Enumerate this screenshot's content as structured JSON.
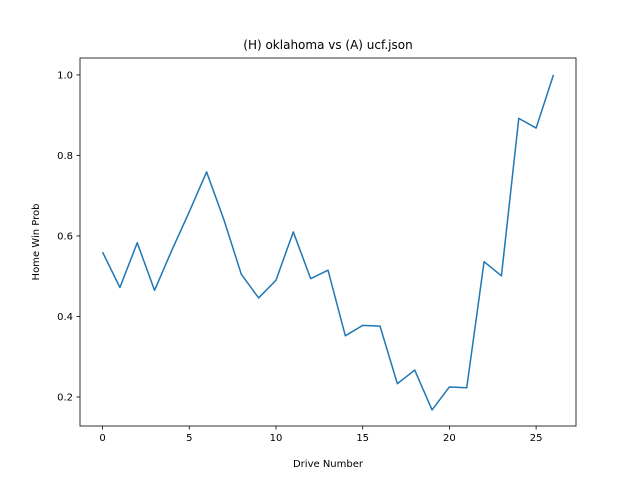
{
  "chart_data": {
    "type": "line",
    "title": "(H) oklahoma vs (A) ucf.json",
    "xlabel": "Drive Number",
    "ylabel": "Home Win Prob",
    "xlim": [
      -1.3,
      27.3
    ],
    "ylim": [
      0.128,
      1.042
    ],
    "xticks": [
      0,
      5,
      10,
      15,
      20,
      25
    ],
    "yticks": [
      0.2,
      0.4,
      0.6,
      0.8,
      1.0
    ],
    "xtick_labels": [
      "0",
      "5",
      "10",
      "15",
      "20",
      "25"
    ],
    "ytick_labels": [
      "0.2",
      "0.4",
      "0.6",
      "0.8",
      "1.0"
    ],
    "grid": false,
    "series": [
      {
        "color": "#1f77b4",
        "x": [
          0,
          1,
          2,
          3,
          4,
          5,
          6,
          7,
          8,
          9,
          10,
          11,
          12,
          13,
          14,
          15,
          16,
          17,
          18,
          19,
          20,
          21,
          22,
          23,
          24,
          25,
          26
        ],
        "y": [
          0.56,
          0.472,
          0.583,
          0.465,
          0.565,
          0.66,
          0.759,
          0.64,
          0.505,
          0.446,
          0.49,
          0.61,
          0.494,
          0.515,
          0.352,
          0.378,
          0.376,
          0.233,
          0.267,
          0.168,
          0.225,
          0.223,
          0.536,
          0.501,
          0.892,
          0.868,
          1.0
        ]
      }
    ]
  }
}
